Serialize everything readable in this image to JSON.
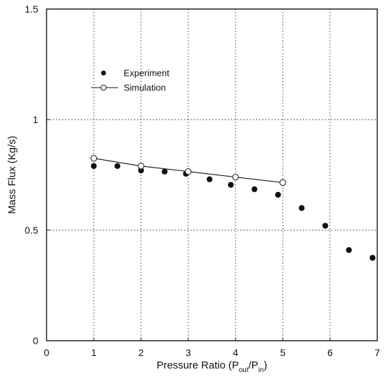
{
  "chart_data": {
    "type": "scatter",
    "title": "",
    "xlabel": "Pressure Ratio (P_out/P_in)",
    "xlabel_parts": {
      "prefix": "Pressure Ratio (P",
      "sub1": "out",
      "mid": "/P",
      "sub2": "in",
      "suffix": ")"
    },
    "ylabel": "Mass Flux (Kg/s)",
    "xlim": [
      0,
      7
    ],
    "ylim": [
      0,
      1.5
    ],
    "xticks": [
      {
        "value": 0,
        "label": "0"
      },
      {
        "value": 1,
        "label": "1"
      },
      {
        "value": 2,
        "label": "2"
      },
      {
        "value": 3,
        "label": "3"
      },
      {
        "value": 4,
        "label": "4"
      },
      {
        "value": 5,
        "label": "5"
      },
      {
        "value": 6,
        "label": "6"
      },
      {
        "value": 7,
        "label": "7"
      }
    ],
    "yticks": [
      {
        "value": 0,
        "label": "0"
      },
      {
        "value": 0.5,
        "label": "0.5"
      },
      {
        "value": 1,
        "label": "1"
      },
      {
        "value": 1.5,
        "label": "1.5"
      }
    ],
    "grid": true,
    "legend_position": "upper-left",
    "series": [
      {
        "name": "Experiment",
        "marker": "filled-circle",
        "line": false,
        "color": "#111111",
        "x": [
          1.0,
          1.5,
          2.0,
          2.5,
          2.95,
          3.45,
          3.9,
          4.4,
          4.9,
          5.4,
          5.9,
          6.4,
          6.9
        ],
        "y": [
          0.79,
          0.79,
          0.77,
          0.765,
          0.755,
          0.73,
          0.705,
          0.685,
          0.66,
          0.6,
          0.52,
          0.41,
          0.375
        ]
      },
      {
        "name": "Simulation",
        "marker": "open-circle",
        "line": true,
        "color": "#111111",
        "x": [
          1.0,
          2.0,
          3.0,
          4.0,
          5.0
        ],
        "y": [
          0.825,
          0.79,
          0.765,
          0.74,
          0.715
        ]
      }
    ]
  }
}
